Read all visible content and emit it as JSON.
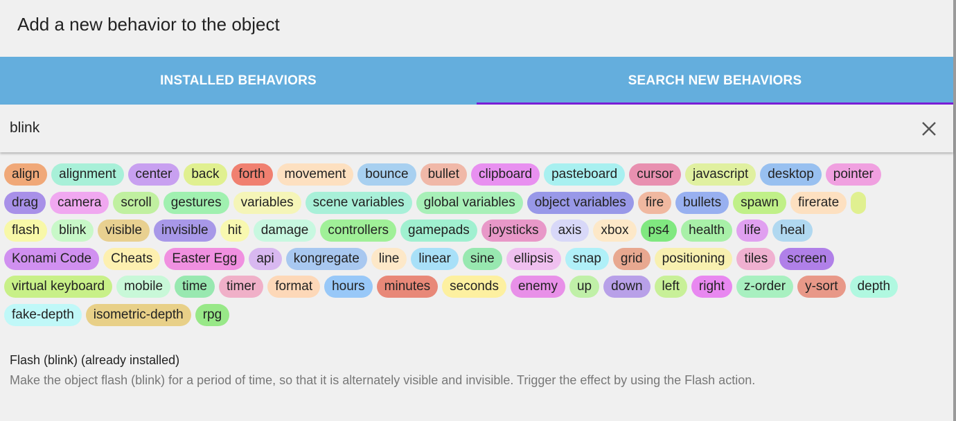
{
  "header": {
    "title": "Add a new behavior to the object"
  },
  "tabs": [
    "INSTALLED BEHAVIORS",
    "SEARCH NEW BEHAVIORS"
  ],
  "search": {
    "value": "blink"
  },
  "tags": {
    "rows": [
      [
        "align",
        "alignment",
        "center",
        "back",
        "forth",
        "movement",
        "bounce",
        "bullet",
        "clipboard",
        "pasteboard",
        "cursor",
        "javascript",
        "desktop",
        "pointer"
      ],
      [
        "drag",
        "camera",
        "scroll",
        "gestures",
        "variables",
        "scene variables",
        "global variables",
        "object variables",
        "fire",
        "bullets",
        "spawn",
        "firerate"
      ],
      [
        "flash",
        "blink",
        "visible",
        "invisible",
        "hit",
        "damage",
        "controllers",
        "gamepads",
        "joysticks",
        "axis",
        "xbox",
        "ps4",
        "health",
        "life",
        "heal"
      ],
      [
        "Konami Code",
        "Cheats",
        "Easter Egg",
        "api",
        "kongregate",
        "line",
        "linear",
        "sine",
        "ellipsis",
        "snap",
        "grid",
        "positioning",
        "tiles",
        "screen"
      ],
      [
        "virtual keyboard",
        "mobile",
        "time",
        "timer",
        "format",
        "hours",
        "minutes",
        "seconds",
        "enemy",
        "up",
        "down",
        "left",
        "right",
        "z-order",
        "y-sort",
        "depth"
      ],
      [
        "fake-depth",
        "isometric-depth",
        "rpg"
      ]
    ]
  },
  "result": {
    "title": "Flash (blink) (already installed)",
    "description": "Make the object flash (blink) for a period of time, so that it is alternately visible and invisible. Trigger the effect by using the Flash action."
  }
}
